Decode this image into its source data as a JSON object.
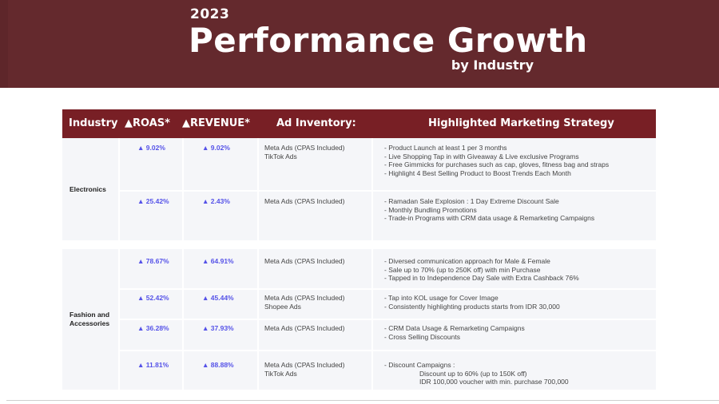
{
  "title": {
    "year": "2023",
    "main": "Performance Growth",
    "sub": "by Industry"
  },
  "table": {
    "headers": [
      "Industry",
      "▲ROAS*",
      "▲REVENUE*",
      "Ad Inventory:",
      "Highlighted Marketing Strategy"
    ],
    "groups": [
      {
        "industry": "Electronics",
        "rows": [
          {
            "roas": "▲ 9.02%",
            "revenue": "▲ 9.02%",
            "inventory": [
              "Meta Ads (CPAS Included)",
              "TikTok Ads"
            ],
            "strategy": [
              "- Product Launch at least 1 per 3 months",
              "- Live Shopping Tap in with Giveaway & Live exclusive Programs",
              "- Free Gimmicks for purchases such as cap, gloves, fitness bag and straps",
              "- Highlight 4 Best Selling Product to Boost Trends Each Month"
            ]
          },
          {
            "roas": "▲ 25.42%",
            "revenue": "▲ 2.43%",
            "inventory": [
              "Meta Ads (CPAS Included)"
            ],
            "strategy": [
              "- Ramadan Sale Explosion : 1 Day Extreme Discount Sale",
              "- Monthly Bundling Promotions",
              "- Trade-in Programs with CRM data usage & Remarketing Campaigns"
            ]
          }
        ]
      },
      {
        "industry": "Fashion and Accessories",
        "industry_lines": [
          "Fashion and",
          "Accessories"
        ],
        "rows": [
          {
            "roas": "▲ 78.67%",
            "revenue": "▲ 64.91%",
            "inventory": [
              "Meta Ads (CPAS Included)"
            ],
            "strategy": [
              "- Diversed communication approach for Male & Female",
              "- Sale up to 70% (up to 250K off) with min Purchase",
              "- Tapped in to Independence Day Sale with Extra Cashback 76%"
            ]
          },
          {
            "roas": "▲ 52.42%",
            "revenue": "▲ 45.44%",
            "inventory": [
              "Meta Ads (CPAS Included)",
              "Shopee Ads"
            ],
            "strategy": [
              "- Tap into KOL usage for Cover Image",
              "- Consistently highlighting products starts from IDR 30,000"
            ]
          },
          {
            "roas": "▲ 36.28%",
            "revenue": "▲ 37.93%",
            "inventory": [
              "Meta Ads (CPAS Included)"
            ],
            "strategy": [
              "- CRM Data Usage & Remarketing Campaigns",
              "- Cross Selling Discounts"
            ]
          },
          {
            "roas": "▲ 11.81%",
            "revenue": "▲ 88.88%",
            "inventory": [
              "Meta Ads (CPAS Included)",
              "TikTok Ads"
            ],
            "strategy": [
              "- Discount Campaigns :",
              "Discount up to 60% (up to 150K off)",
              "IDR 100,000 voucher with min. purchase 700,000"
            ]
          }
        ]
      }
    ]
  },
  "colors": {
    "banner": "#64292d",
    "header": "#781f25",
    "percent": "#5552e8",
    "cell": "#f5f6f9"
  }
}
